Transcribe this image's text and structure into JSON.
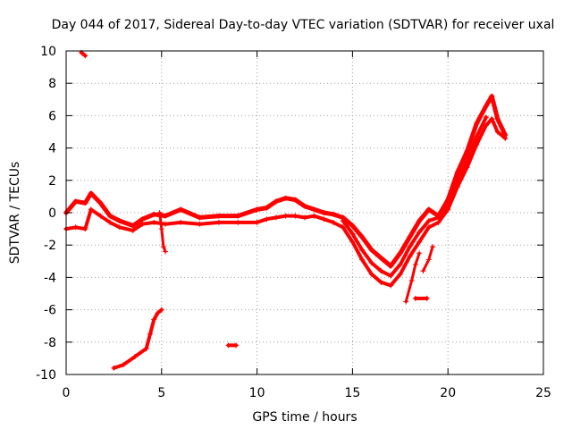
{
  "chart_data": {
    "type": "scatter",
    "title": "Day 044 of 2017, Sidereal Day-to-day VTEC variation (SDTVAR) for receiver uxal",
    "xlabel": "GPS time / hours",
    "ylabel": "SDTVAR / TECUs",
    "xlim": [
      0,
      25
    ],
    "ylim": [
      -10,
      10
    ],
    "xticks": [
      0,
      5,
      10,
      15,
      20,
      25
    ],
    "yticks": [
      -10,
      -8,
      -6,
      -4,
      -2,
      0,
      2,
      4,
      6,
      8,
      10
    ],
    "grid": true,
    "color": "#ff0000",
    "marker": "+",
    "series": [
      {
        "name": "main-upper",
        "points": [
          [
            0,
            0.0
          ],
          [
            0.5,
            0.7
          ],
          [
            1.0,
            0.6
          ],
          [
            1.3,
            1.2
          ],
          [
            1.8,
            0.6
          ],
          [
            2.3,
            -0.2
          ],
          [
            2.8,
            -0.5
          ],
          [
            3.5,
            -0.8
          ],
          [
            4.0,
            -0.4
          ],
          [
            4.6,
            -0.1
          ],
          [
            5.2,
            -0.2
          ],
          [
            6.0,
            0.2
          ],
          [
            7.0,
            -0.3
          ],
          [
            8.0,
            -0.2
          ],
          [
            9.0,
            -0.2
          ],
          [
            10.0,
            0.2
          ],
          [
            10.5,
            0.3
          ],
          [
            11.0,
            0.7
          ],
          [
            11.5,
            0.9
          ],
          [
            12.0,
            0.8
          ],
          [
            12.5,
            0.4
          ],
          [
            13.0,
            0.2
          ],
          [
            13.5,
            0.0
          ],
          [
            14.0,
            -0.1
          ],
          [
            14.5,
            -0.3
          ],
          [
            15.0,
            -0.8
          ],
          [
            15.5,
            -1.5
          ],
          [
            16.0,
            -2.3
          ],
          [
            16.5,
            -2.8
          ],
          [
            17.0,
            -3.3
          ],
          [
            17.5,
            -2.5
          ],
          [
            18.0,
            -1.5
          ],
          [
            18.5,
            -0.5
          ],
          [
            19.0,
            0.2
          ],
          [
            19.5,
            -0.2
          ],
          [
            20.0,
            0.8
          ],
          [
            20.5,
            2.5
          ],
          [
            21.0,
            3.8
          ],
          [
            21.5,
            5.5
          ],
          [
            22.0,
            6.6
          ],
          [
            22.3,
            7.2
          ],
          [
            22.6,
            5.8
          ],
          [
            23.0,
            4.8
          ]
        ],
        "width": 5
      },
      {
        "name": "main-lower",
        "points": [
          [
            0,
            -1.0
          ],
          [
            0.5,
            -0.9
          ],
          [
            1.0,
            -1.0
          ],
          [
            1.3,
            0.2
          ],
          [
            1.8,
            -0.2
          ],
          [
            2.3,
            -0.6
          ],
          [
            2.8,
            -0.9
          ],
          [
            3.5,
            -1.1
          ],
          [
            4.0,
            -0.7
          ],
          [
            4.6,
            -0.6
          ],
          [
            5.2,
            -0.7
          ],
          [
            6.0,
            -0.6
          ],
          [
            7.0,
            -0.7
          ],
          [
            8.0,
            -0.6
          ],
          [
            9.0,
            -0.6
          ],
          [
            10.0,
            -0.6
          ],
          [
            10.5,
            -0.4
          ],
          [
            11.0,
            -0.3
          ],
          [
            11.5,
            -0.2
          ],
          [
            12.0,
            -0.2
          ],
          [
            12.5,
            -0.3
          ],
          [
            13.0,
            -0.2
          ],
          [
            13.5,
            -0.4
          ],
          [
            14.0,
            -0.6
          ],
          [
            14.5,
            -0.9
          ],
          [
            15.0,
            -1.8
          ],
          [
            15.5,
            -2.9
          ],
          [
            16.0,
            -3.8
          ],
          [
            16.5,
            -4.3
          ],
          [
            17.0,
            -4.5
          ],
          [
            17.5,
            -3.8
          ],
          [
            18.0,
            -2.7
          ],
          [
            18.5,
            -1.8
          ],
          [
            19.0,
            -0.9
          ],
          [
            19.5,
            -0.6
          ],
          [
            20.0,
            0.2
          ],
          [
            20.5,
            1.6
          ],
          [
            21.0,
            2.8
          ],
          [
            21.5,
            4.2
          ],
          [
            22.0,
            5.4
          ],
          [
            22.3,
            5.8
          ],
          [
            22.6,
            5.0
          ],
          [
            23.0,
            4.6
          ]
        ],
        "width": 4
      },
      {
        "name": "main-middle",
        "points": [
          [
            14.5,
            -0.5
          ],
          [
            15.0,
            -1.3
          ],
          [
            15.5,
            -2.3
          ],
          [
            16.0,
            -3.1
          ],
          [
            16.5,
            -3.6
          ],
          [
            17.0,
            -3.9
          ],
          [
            17.5,
            -3.2
          ],
          [
            18.0,
            -2.1
          ],
          [
            18.5,
            -1.2
          ],
          [
            19.0,
            -0.5
          ],
          [
            19.5,
            -0.3
          ],
          [
            20.0,
            0.5
          ],
          [
            20.5,
            2.0
          ],
          [
            21.0,
            3.2
          ],
          [
            21.5,
            4.7
          ],
          [
            22.0,
            5.9
          ]
        ],
        "width": 4
      },
      {
        "name": "dip-1",
        "points": [
          [
            17.8,
            -5.5
          ],
          [
            18.1,
            -4.2
          ],
          [
            18.3,
            -3.2
          ],
          [
            18.5,
            -2.5
          ]
        ],
        "width": 3
      },
      {
        "name": "dip-2",
        "points": [
          [
            18.7,
            -3.6
          ],
          [
            19.0,
            -2.9
          ],
          [
            19.2,
            -2.1
          ]
        ],
        "width": 3
      },
      {
        "name": "spike-5",
        "points": [
          [
            4.9,
            0.0
          ],
          [
            5.0,
            -1.0
          ],
          [
            5.1,
            -2.1
          ],
          [
            5.2,
            -2.4
          ]
        ],
        "width": 3
      },
      {
        "name": "low-left",
        "points": [
          [
            2.5,
            -9.6
          ],
          [
            3.0,
            -9.4
          ],
          [
            3.6,
            -8.9
          ],
          [
            4.2,
            -8.4
          ],
          [
            4.4,
            -7.5
          ],
          [
            4.6,
            -6.6
          ],
          [
            4.8,
            -6.2
          ],
          [
            5.0,
            -6.0
          ]
        ],
        "width": 4
      },
      {
        "name": "seg-top",
        "points": [
          [
            0.8,
            9.9
          ],
          [
            1.0,
            9.7
          ]
        ],
        "width": 4
      },
      {
        "name": "seg-mid",
        "points": [
          [
            8.5,
            -8.2
          ],
          [
            8.9,
            -8.2
          ]
        ],
        "width": 4
      },
      {
        "name": "seg-right",
        "points": [
          [
            18.3,
            -5.3
          ],
          [
            18.9,
            -5.3
          ]
        ],
        "width": 4
      }
    ]
  }
}
